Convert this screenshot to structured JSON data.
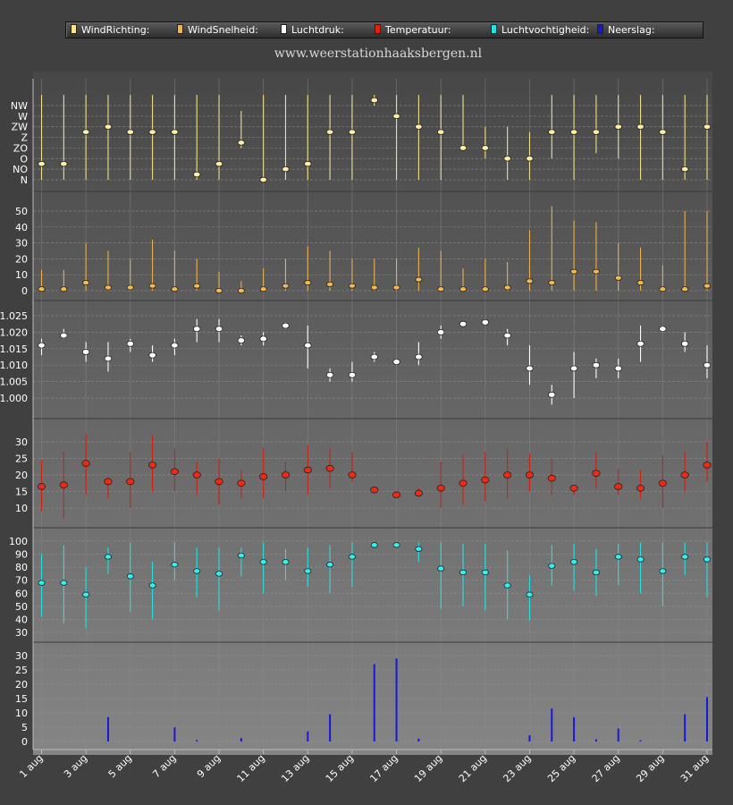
{
  "watermark": "www.weerstationhaaksbergen.nl",
  "legend": [
    {
      "label": "WindRichting:",
      "color": "#ffe48a"
    },
    {
      "label": "WindSnelheid:",
      "color": "#f4b24c"
    },
    {
      "label": "Luchtdruk:",
      "color": "#ffffff"
    },
    {
      "label": "Temperatuur:",
      "color": "#e02010"
    },
    {
      "label": "Luchtvochtigheid:",
      "color": "#28e0e0"
    },
    {
      "label": "Neerslag:",
      "color": "#1818c8"
    }
  ],
  "chart_data": [
    {
      "type": "scatter",
      "name": "WindRichting",
      "x_tick_labels": [
        "1 aug",
        "3 aug",
        "5 aug",
        "7 aug",
        "9 aug",
        "11 aug",
        "13 aug",
        "15 aug",
        "17 aug",
        "19 aug",
        "21 aug",
        "23 aug",
        "25 aug",
        "27 aug",
        "29 aug",
        "31 aug"
      ],
      "y_tick_labels": [
        "N",
        "NO",
        "O",
        "ZO",
        "Z",
        "ZW",
        "W",
        "NW"
      ],
      "ylim": [
        0,
        7.5
      ],
      "values": [
        1.5,
        1.5,
        4.5,
        5,
        4.5,
        4.5,
        4.5,
        0.5,
        1.5,
        3.5,
        0,
        1,
        1.5,
        4.5,
        4.5,
        7.5,
        6,
        5,
        4.5,
        3,
        3,
        2,
        2,
        4.5,
        4.5,
        4.5,
        5,
        5,
        4.5,
        1,
        5
      ],
      "low": [
        0,
        0,
        0,
        0,
        0,
        0,
        0,
        0,
        0,
        3,
        0,
        0,
        0,
        0,
        0,
        7,
        0,
        0,
        0,
        3,
        2,
        0,
        0,
        2,
        0,
        2.5,
        2,
        0,
        0,
        0,
        0
      ],
      "high": [
        8,
        8,
        8,
        8,
        8,
        8,
        8,
        8,
        8,
        6.5,
        8,
        8,
        8,
        8,
        8,
        8,
        8,
        8,
        8,
        8,
        5,
        5,
        4.5,
        8,
        8,
        8,
        8,
        8,
        8,
        8,
        8
      ]
    },
    {
      "type": "scatter",
      "name": "WindSnelheid",
      "y_ticks": [
        0,
        10,
        20,
        30,
        40,
        50
      ],
      "ylim": [
        0,
        56
      ],
      "values": [
        1,
        1,
        5,
        2,
        2,
        3,
        1,
        3,
        0,
        0,
        1,
        3,
        5,
        4,
        3,
        2,
        2,
        7,
        1,
        1,
        1,
        2,
        6,
        5,
        12,
        12,
        8,
        5,
        1,
        1,
        3
      ],
      "low": [
        0,
        0,
        0,
        0,
        0,
        0,
        0,
        0,
        0,
        0,
        0,
        0,
        0,
        0,
        0,
        0,
        0,
        0,
        0,
        0,
        0,
        0,
        0,
        0,
        0,
        0,
        0,
        0,
        0,
        0,
        0
      ],
      "high": [
        13,
        13,
        30,
        25,
        20,
        32,
        25,
        20,
        12,
        6,
        14,
        20,
        28,
        25,
        20,
        20,
        20,
        27,
        25,
        14,
        20,
        18,
        38,
        53,
        44,
        43,
        30,
        27,
        16,
        50,
        50
      ]
    },
    {
      "type": "scatter",
      "name": "Luchtdruk",
      "y_ticks": [
        1.0,
        1.005,
        1.01,
        1.015,
        1.02,
        1.025
      ],
      "ylim": [
        0.996,
        1.03
      ],
      "values": [
        1.016,
        1.019,
        1.014,
        1.012,
        1.0165,
        1.013,
        1.016,
        1.021,
        1.021,
        1.0175,
        1.018,
        1.022,
        1.016,
        1.007,
        1.007,
        1.0125,
        1.011,
        1.0125,
        1.02,
        1.0225,
        1.023,
        1.019,
        1.009,
        1.001,
        1.009,
        1.01,
        1.009,
        1.0165,
        1.021,
        1.0165,
        1.01
      ],
      "low": [
        1.013,
        1.018,
        1.011,
        1.008,
        1.014,
        1.011,
        1.013,
        1.017,
        1.017,
        1.016,
        1.016,
        1.021,
        1.009,
        1.005,
        1.005,
        1.011,
        1.01,
        1.01,
        1.018,
        1.022,
        1.022,
        1.016,
        1.004,
        0.998,
        1.0,
        1.006,
        1.006,
        1.011,
        1.02,
        1.014,
        1.006
      ],
      "high": [
        1.018,
        1.021,
        1.017,
        1.017,
        1.018,
        1.016,
        1.018,
        1.024,
        1.024,
        1.019,
        1.02,
        1.023,
        1.022,
        1.009,
        1.011,
        1.014,
        1.012,
        1.017,
        1.022,
        1.023,
        1.024,
        1.021,
        1.016,
        1.004,
        1.014,
        1.012,
        1.012,
        1.022,
        1.022,
        1.02,
        1.016
      ]
    },
    {
      "type": "scatter",
      "name": "Temperatuur",
      "y_ticks": [
        10,
        15,
        20,
        25,
        30
      ],
      "ylim": [
        5,
        34
      ],
      "values": [
        16.5,
        17,
        23.5,
        18,
        18,
        23,
        21,
        20,
        18,
        17.5,
        19.5,
        20,
        21.5,
        22,
        20,
        15.5,
        14,
        14.5,
        16,
        17.5,
        18.5,
        20,
        20,
        19,
        16,
        20.5,
        16.5,
        16,
        17.5,
        20,
        23
      ],
      "low": [
        9,
        7,
        14,
        13,
        10,
        15,
        15,
        14,
        11,
        13,
        13,
        15,
        14,
        16,
        18,
        15,
        13,
        14,
        10,
        11,
        12,
        13,
        15,
        14,
        14,
        16,
        14,
        13,
        10,
        15,
        18
      ],
      "high": [
        24.5,
        27,
        32.5,
        19.5,
        27,
        32,
        28,
        24,
        25,
        21.5,
        28,
        24,
        29,
        28,
        27,
        16,
        15,
        16,
        24,
        26,
        27,
        28,
        26.5,
        25,
        17,
        27,
        22,
        21.5,
        26,
        27,
        30
      ]
    },
    {
      "type": "scatter",
      "name": "Luchtvochtigheid",
      "y_ticks": [
        30,
        40,
        50,
        60,
        70,
        80,
        90,
        100
      ],
      "ylim": [
        25,
        102
      ],
      "values": [
        68,
        68,
        59,
        88,
        73,
        66,
        82,
        77,
        75,
        89,
        84,
        84,
        77,
        82,
        88,
        97,
        97,
        94,
        79,
        76,
        76,
        66,
        59,
        81,
        84,
        76,
        88,
        86,
        77,
        88,
        86
      ],
      "low": [
        42,
        37,
        33,
        75,
        46,
        40,
        70,
        57,
        47,
        73,
        60,
        70,
        65,
        60,
        65,
        97,
        97,
        84,
        48,
        50,
        47,
        40,
        39,
        66,
        62,
        58,
        66,
        60,
        50,
        74,
        57
      ],
      "high": [
        90,
        97,
        80,
        95,
        99,
        84,
        99,
        95,
        95,
        95,
        99,
        94,
        95,
        97,
        99,
        99,
        99,
        99,
        99,
        98,
        98,
        93,
        74,
        97,
        98,
        94,
        98,
        99,
        99,
        99,
        99
      ]
    },
    {
      "type": "bar",
      "name": "Neerslag",
      "y_ticks": [
        0,
        5,
        10,
        15,
        20,
        25,
        30
      ],
      "ylim": [
        0,
        34
      ],
      "values": [
        0,
        0,
        0,
        8.5,
        0,
        0,
        5,
        0.5,
        0,
        1.2,
        0,
        0,
        3.5,
        9.5,
        0,
        27,
        29,
        1,
        0,
        0,
        0,
        0,
        2.2,
        11.5,
        8.5,
        0.8,
        4.5,
        0.4,
        0,
        9.5,
        15.5
      ]
    }
  ]
}
